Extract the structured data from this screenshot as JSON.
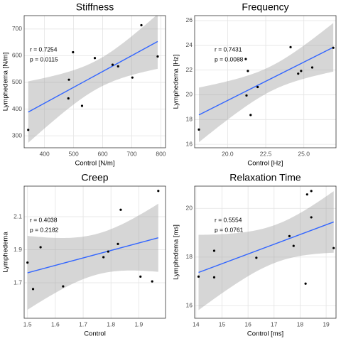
{
  "chart_data": [
    {
      "type": "scatter",
      "title": "Stiffness",
      "x_label": "Control [N/m]",
      "y_label": "Lymphedema [N/m]",
      "x": [
        344,
        484,
        482,
        498,
        529,
        573,
        634,
        653,
        702,
        733,
        789
      ],
      "y": [
        322,
        510,
        440,
        613,
        412,
        591,
        566,
        560,
        518,
        714,
        597
      ],
      "color": "#000000",
      "trendline": {
        "color": "#3366ff",
        "confidence_band": true
      },
      "grid": true,
      "xlim": [
        330,
        816
      ],
      "xticks": [
        400,
        500,
        600,
        700,
        800
      ],
      "ylim": [
        255,
        750
      ],
      "yticks": [
        300,
        400,
        500,
        600,
        700
      ],
      "annotations": [
        "r = 0.7254",
        "p = 0.0115"
      ]
    },
    {
      "type": "scatter",
      "title": "Frequency",
      "x_label": "Control [Hz]",
      "y_label": "Lymphedema [Hz]",
      "x": [
        18.12,
        21.19,
        21.33,
        21.24,
        21.51,
        21.97,
        24.13,
        24.63,
        24.82,
        25.55,
        26.93
      ],
      "y": [
        17.19,
        22.89,
        21.93,
        19.95,
        18.37,
        20.63,
        23.85,
        21.71,
        21.93,
        22.21,
        23.8
      ],
      "color": "#000000",
      "trendline": {
        "color": "#3366ff",
        "confidence_band": true
      },
      "grid": true,
      "xlim": [
        17.84,
        27.11
      ],
      "xticks": [
        {
          "value": 20,
          "label": "20.0"
        },
        22.5,
        {
          "value": 25,
          "label": "25.0"
        }
      ],
      "ylim": [
        15.72,
        26.4
      ],
      "yticks": [
        16,
        18,
        20,
        22,
        24,
        26
      ],
      "annotations": [
        "r = 0.7431",
        "p = 0.0088"
      ]
    },
    {
      "type": "scatter",
      "title": "Creep",
      "x_label": "Control",
      "y_label": "Lymphedema",
      "x": [
        1.5,
        1.52,
        1.547,
        1.628,
        1.773,
        1.79,
        1.825,
        1.835,
        1.906,
        1.948,
        1.97
      ],
      "y": [
        1.822,
        1.662,
        1.915,
        1.678,
        1.855,
        1.889,
        1.935,
        2.142,
        1.737,
        1.708,
        2.256
      ],
      "color": "#000000",
      "trendline": {
        "color": "#3366ff",
        "confidence_band": true
      },
      "grid": true,
      "xlim": [
        1.488,
        1.996
      ],
      "xticks": [
        1.5,
        1.6,
        1.7,
        1.8,
        1.9
      ],
      "ylim": [
        1.485,
        2.285
      ],
      "yticks": [
        1.7,
        1.9,
        2.1
      ],
      "annotations": [
        "r = 0.4038",
        "p = 0.2182"
      ]
    },
    {
      "type": "scatter",
      "title": "Relaxation Time",
      "x_label": "Control [ms]",
      "y_label": "Lymphedema [ms]",
      "x": [
        14.1,
        14.7,
        14.7,
        16.32,
        17.59,
        17.75,
        18.21,
        18.27,
        18.43,
        18.43,
        19.29
      ],
      "y": [
        17.2,
        18.26,
        17.17,
        17.97,
        18.86,
        18.46,
        16.91,
        20.57,
        20.71,
        19.63,
        18.37
      ],
      "color": "#000000",
      "trendline": {
        "color": "#3366ff",
        "confidence_band": true
      },
      "grid": true,
      "xlim": [
        13.95,
        19.38
      ],
      "xticks": [
        14,
        15,
        16,
        17,
        18,
        19
      ],
      "ylim": [
        15.49,
        20.91
      ],
      "yticks": [
        16,
        18,
        20
      ],
      "annotations": [
        "r = 0.5554",
        "p = 0.0761"
      ]
    }
  ]
}
